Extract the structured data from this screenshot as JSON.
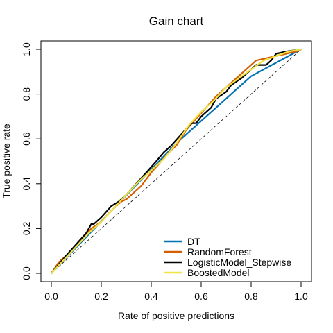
{
  "chart_data": {
    "type": "line",
    "title": "Gain chart",
    "xlabel": "Rate of positive predictions",
    "ylabel": "True positive rate",
    "xlim": [
      0,
      1
    ],
    "ylim": [
      0,
      1
    ],
    "xticks": [
      "0.0",
      "0.2",
      "0.4",
      "0.6",
      "0.8",
      "1.0"
    ],
    "yticks": [
      "0.0",
      "0.2",
      "0.4",
      "0.6",
      "0.8",
      "1.0"
    ],
    "grid": false,
    "legend_position": "bottom-right",
    "baseline": {
      "x": [
        0,
        1
      ],
      "y": [
        0,
        1
      ],
      "style": "dashed"
    },
    "series": [
      {
        "name": "DT",
        "color": "#0072B2",
        "x": [
          0,
          0.5,
          0.8,
          1.0
        ],
        "y": [
          0,
          0.58,
          0.88,
          1.0
        ]
      },
      {
        "name": "RandomForest",
        "color": "#D55E00",
        "x": [
          0,
          0.03,
          0.08,
          0.12,
          0.16,
          0.2,
          0.24,
          0.28,
          0.3,
          0.32,
          0.36,
          0.4,
          0.44,
          0.48,
          0.5,
          0.54,
          0.58,
          0.62,
          0.66,
          0.7,
          0.74,
          0.78,
          0.82,
          0.86,
          0.9,
          0.94,
          0.98,
          1.0
        ],
        "y": [
          0,
          0.05,
          0.1,
          0.15,
          0.2,
          0.23,
          0.28,
          0.32,
          0.33,
          0.35,
          0.39,
          0.45,
          0.5,
          0.55,
          0.57,
          0.64,
          0.69,
          0.74,
          0.79,
          0.83,
          0.87,
          0.91,
          0.95,
          0.96,
          0.97,
          0.98,
          0.99,
          1.0
        ]
      },
      {
        "name": "LogisticModel_Stepwise",
        "color": "#000000",
        "x": [
          0,
          0.03,
          0.06,
          0.1,
          0.14,
          0.16,
          0.17,
          0.2,
          0.24,
          0.27,
          0.3,
          0.34,
          0.38,
          0.42,
          0.45,
          0.48,
          0.52,
          0.56,
          0.58,
          0.6,
          0.64,
          0.66,
          0.7,
          0.72,
          0.76,
          0.8,
          0.82,
          0.86,
          0.88,
          0.9,
          0.94,
          1.0
        ],
        "y": [
          0,
          0.04,
          0.08,
          0.13,
          0.18,
          0.22,
          0.22,
          0.25,
          0.3,
          0.32,
          0.35,
          0.4,
          0.45,
          0.5,
          0.54,
          0.57,
          0.62,
          0.67,
          0.67,
          0.7,
          0.74,
          0.78,
          0.81,
          0.84,
          0.87,
          0.91,
          0.93,
          0.93,
          0.95,
          0.98,
          0.99,
          1.0
        ]
      },
      {
        "name": "BoostedModel",
        "color": "#F0E442",
        "x": [
          0,
          0.05,
          0.1,
          0.15,
          0.2,
          0.25,
          0.3,
          0.35,
          0.4,
          0.45,
          0.5,
          0.55,
          0.6,
          0.65,
          0.7,
          0.75,
          0.8,
          0.85,
          0.9,
          0.95,
          1.0
        ],
        "y": [
          0,
          0.06,
          0.12,
          0.18,
          0.23,
          0.29,
          0.35,
          0.41,
          0.46,
          0.51,
          0.58,
          0.66,
          0.72,
          0.77,
          0.83,
          0.87,
          0.91,
          0.95,
          0.97,
          0.99,
          1.0
        ]
      }
    ]
  }
}
